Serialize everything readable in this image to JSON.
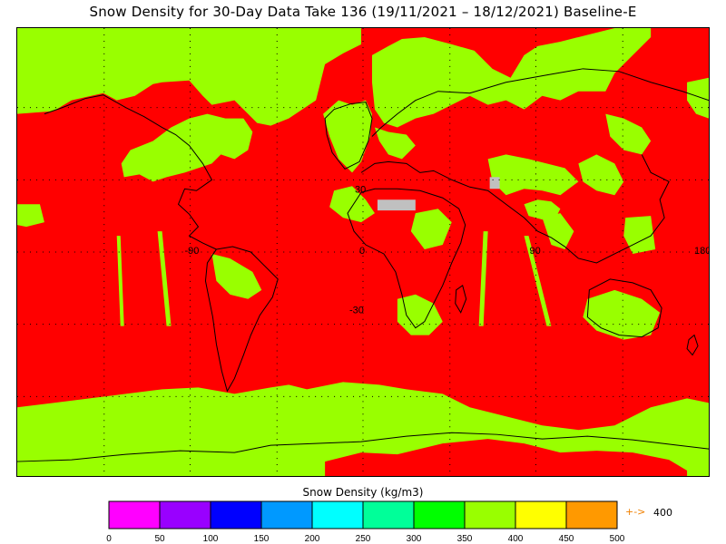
{
  "title": "Snow Density for 30-Day Data Take 136 (19/11/2021 – 18/12/2021) Baseline-E",
  "map": {
    "colors": {
      "no_snow": "#ff0000",
      "high_density": "#99ff00",
      "no_data": "#c0c0c0",
      "coast": "#000000",
      "border": "#000000"
    },
    "lon_labels": [
      "-90",
      "0",
      "90",
      "180"
    ],
    "lat_labels": [
      "30",
      "-30"
    ]
  },
  "colorbar": {
    "label": "Snow Density (kg/m3)",
    "ticks": [
      "0",
      "50",
      "100",
      "150",
      "200",
      "250",
      "300",
      "350",
      "400",
      "450",
      "500"
    ],
    "colors": [
      "#ff00ff",
      "#9900ff",
      "#0000ff",
      "#0099ff",
      "#00ffff",
      "#00ff99",
      "#00ff00",
      "#99ff00",
      "#ffff00",
      "#ff9900"
    ],
    "overflow_arrow": "+->",
    "overflow_value": "400"
  }
}
